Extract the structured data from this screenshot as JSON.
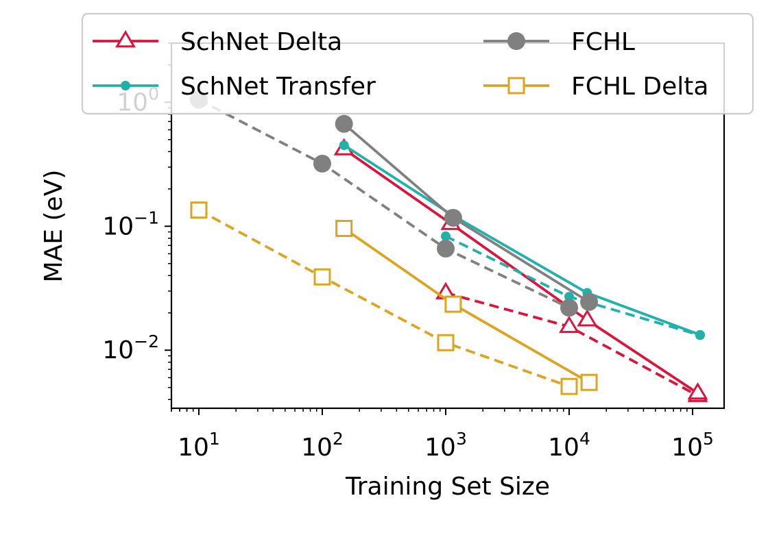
{
  "chart_data": {
    "type": "line",
    "xscale": "log",
    "yscale": "log",
    "xlabel": "Training Set Size",
    "ylabel": "MAE (eV)",
    "xlim": [
      6,
      180000
    ],
    "ylim": [
      0.0034,
      3.0
    ],
    "xticks": [
      {
        "value": 10,
        "base": "10",
        "exp": "1"
      },
      {
        "value": 100,
        "base": "10",
        "exp": "2"
      },
      {
        "value": 1000,
        "base": "10",
        "exp": "3"
      },
      {
        "value": 10000,
        "base": "10",
        "exp": "4"
      },
      {
        "value": 100000,
        "base": "10",
        "exp": "5"
      }
    ],
    "yticks": [
      {
        "value": 0.01,
        "base": "10",
        "exp": "−2"
      },
      {
        "value": 0.1,
        "base": "10",
        "exp": "−1"
      },
      {
        "value": 1,
        "base": "10",
        "exp": "0"
      }
    ],
    "grid": false,
    "legend_position": "top",
    "series": [
      {
        "name": "SchNet Delta",
        "color": "#dc143c",
        "marker": "triangle",
        "solid": {
          "x": [
            150,
            1100,
            14000,
            110000
          ],
          "y": [
            0.42,
            0.105,
            0.0175,
            0.0045
          ]
        },
        "dashed": {
          "x": [
            1000,
            10000,
            110000
          ],
          "y": [
            0.029,
            0.0155,
            0.0043
          ]
        }
      },
      {
        "name": "SchNet Transfer",
        "color": "#20b2aa",
        "marker": "dot",
        "solid": {
          "x": [
            150,
            1100,
            14000,
            115000
          ],
          "y": [
            0.45,
            0.125,
            0.029,
            0.0133
          ]
        },
        "dashed": {
          "x": [
            1000,
            10000,
            115000
          ],
          "y": [
            0.083,
            0.027,
            0.0132
          ]
        }
      },
      {
        "name": "FCHL",
        "color": "#808080",
        "marker": "circle",
        "solid": {
          "x": [
            150,
            1150,
            14500
          ],
          "y": [
            0.67,
            0.117,
            0.0245
          ]
        },
        "dashed": {
          "x": [
            10,
            100,
            1000,
            10000
          ],
          "y": [
            1.05,
            0.32,
            0.066,
            0.022
          ]
        }
      },
      {
        "name": "FCHL Delta",
        "color": "#daa520",
        "marker": "square",
        "solid": {
          "x": [
            150,
            1150,
            14500
          ],
          "y": [
            0.096,
            0.0235,
            0.0055
          ]
        },
        "dashed": {
          "x": [
            10,
            100,
            1000,
            10000
          ],
          "y": [
            0.135,
            0.039,
            0.0115,
            0.0051
          ]
        }
      }
    ]
  }
}
